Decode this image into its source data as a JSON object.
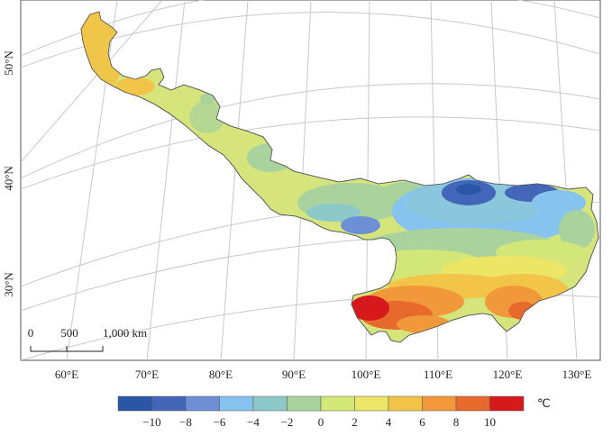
{
  "map": {
    "longitude_labels": [
      "60°E",
      "70°E",
      "80°E",
      "90°E",
      "100°E",
      "110°E",
      "120°E",
      "130°E"
    ],
    "latitude_labels": [
      "50°N",
      "40°N",
      "30°N"
    ],
    "scale_bar": {
      "labels": [
        "0",
        "500",
        "1,000 km"
      ]
    },
    "legend": {
      "unit": "℃",
      "labels": [
        "−10",
        "−8",
        "−6",
        "−4",
        "−2",
        "0",
        "2",
        "4",
        "6",
        "8",
        "10"
      ],
      "colors": [
        "#2b56a6",
        "#4466b8",
        "#6d8fd6",
        "#86c3ee",
        "#8ec9c9",
        "#a9d29d",
        "#d3e678",
        "#ece565",
        "#f2c548",
        "#f0983a",
        "#e76a2c",
        "#d7191c"
      ]
    }
  }
}
